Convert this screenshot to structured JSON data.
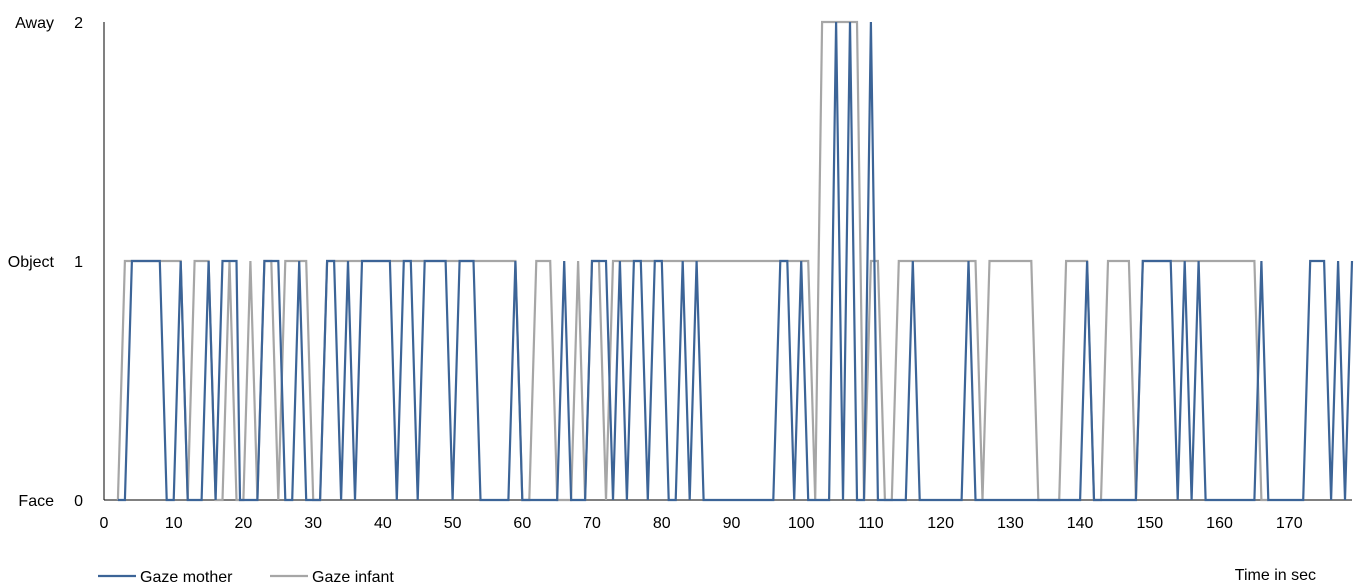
{
  "chart_data": {
    "type": "line",
    "title": "",
    "xlabel": "Time in sec",
    "ylabel": "",
    "xlim": [
      0,
      179
    ],
    "ylim": [
      0,
      2
    ],
    "x_ticks": [
      0,
      10,
      20,
      30,
      40,
      50,
      60,
      70,
      80,
      90,
      100,
      110,
      120,
      130,
      140,
      150,
      160,
      170
    ],
    "y_ticks": [
      0,
      1,
      2
    ],
    "y_category_labels": [
      "Face",
      "Object",
      "Away"
    ],
    "grid": false,
    "legend_position": "bottom-left",
    "series": [
      {
        "name": "Gaze mother",
        "color": "#3C6497",
        "points": [
          [
            2,
            0
          ],
          [
            3,
            0
          ],
          [
            4,
            1
          ],
          [
            8,
            1
          ],
          [
            9,
            0
          ],
          [
            10,
            0
          ],
          [
            11,
            1
          ],
          [
            12,
            0
          ],
          [
            14,
            0
          ],
          [
            15,
            1
          ],
          [
            16,
            0
          ],
          [
            17,
            1
          ],
          [
            18,
            1
          ],
          [
            19,
            1
          ],
          [
            19.5,
            0
          ],
          [
            22,
            0
          ],
          [
            23,
            1
          ],
          [
            25,
            1
          ],
          [
            26,
            0
          ],
          [
            27,
            0
          ],
          [
            28,
            1
          ],
          [
            29,
            0
          ],
          [
            31,
            0
          ],
          [
            32,
            1
          ],
          [
            33,
            1
          ],
          [
            34,
            0
          ],
          [
            35,
            1
          ],
          [
            36,
            0
          ],
          [
            37,
            1
          ],
          [
            41,
            1
          ],
          [
            42,
            0
          ],
          [
            43,
            1
          ],
          [
            44,
            1
          ],
          [
            45,
            0
          ],
          [
            46,
            1
          ],
          [
            49,
            1
          ],
          [
            50,
            0
          ],
          [
            51,
            1
          ],
          [
            53,
            1
          ],
          [
            54,
            0
          ],
          [
            58,
            0
          ],
          [
            59,
            1
          ],
          [
            60,
            0
          ],
          [
            65,
            0
          ],
          [
            66,
            1
          ],
          [
            67,
            0
          ],
          [
            69,
            0
          ],
          [
            70,
            1
          ],
          [
            72,
            1
          ],
          [
            73,
            0
          ],
          [
            74,
            1
          ],
          [
            75,
            0
          ],
          [
            76,
            1
          ],
          [
            77,
            1
          ],
          [
            78,
            0
          ],
          [
            79,
            1
          ],
          [
            80,
            1
          ],
          [
            81,
            0
          ],
          [
            82,
            0
          ],
          [
            83,
            1
          ],
          [
            84,
            0
          ],
          [
            85,
            1
          ],
          [
            86,
            0
          ],
          [
            96,
            0
          ],
          [
            97,
            1
          ],
          [
            98,
            1
          ],
          [
            99,
            0
          ],
          [
            100,
            1
          ],
          [
            101,
            0
          ],
          [
            102,
            0
          ],
          [
            104,
            0
          ],
          [
            105,
            2
          ],
          [
            106,
            0
          ],
          [
            107,
            2
          ],
          [
            108,
            0
          ],
          [
            109,
            0
          ],
          [
            110,
            2
          ],
          [
            111,
            0
          ],
          [
            114,
            0
          ],
          [
            115,
            0
          ],
          [
            116,
            1
          ],
          [
            117,
            0
          ],
          [
            123,
            0
          ],
          [
            124,
            1
          ],
          [
            125,
            0
          ],
          [
            134,
            0
          ],
          [
            140,
            0
          ],
          [
            141,
            1
          ],
          [
            142,
            0
          ],
          [
            148,
            0
          ],
          [
            149,
            1
          ],
          [
            150,
            1
          ],
          [
            151,
            1
          ],
          [
            153,
            1
          ],
          [
            154,
            0
          ],
          [
            155,
            1
          ],
          [
            156,
            0
          ],
          [
            157,
            1
          ],
          [
            158,
            0
          ],
          [
            165,
            0
          ],
          [
            166,
            1
          ],
          [
            167,
            0
          ],
          [
            172,
            0
          ],
          [
            173,
            1
          ],
          [
            175,
            1
          ],
          [
            176,
            0
          ],
          [
            177,
            1
          ],
          [
            178,
            0
          ],
          [
            179,
            1
          ]
        ]
      },
      {
        "name": "Gaze infant",
        "color": "#A6A6A6",
        "points": [
          [
            2,
            0
          ],
          [
            3,
            1
          ],
          [
            11,
            1
          ],
          [
            12,
            0
          ],
          [
            13,
            1
          ],
          [
            15,
            1
          ],
          [
            16,
            0
          ],
          [
            17,
            0
          ],
          [
            18,
            1
          ],
          [
            19,
            0
          ],
          [
            20,
            0
          ],
          [
            21,
            1
          ],
          [
            22,
            0
          ],
          [
            23,
            1
          ],
          [
            24,
            1
          ],
          [
            25,
            0
          ],
          [
            26,
            1
          ],
          [
            29,
            1
          ],
          [
            30,
            0
          ],
          [
            31,
            0
          ],
          [
            32,
            1
          ],
          [
            59,
            1
          ],
          [
            60,
            0
          ],
          [
            61,
            0
          ],
          [
            62,
            1
          ],
          [
            64,
            1
          ],
          [
            65,
            0
          ],
          [
            67,
            0
          ],
          [
            68,
            1
          ],
          [
            69,
            0
          ],
          [
            70,
            1
          ],
          [
            71,
            1
          ],
          [
            72,
            0
          ],
          [
            73,
            1
          ],
          [
            101,
            1
          ],
          [
            102,
            0
          ],
          [
            103,
            2
          ],
          [
            108,
            2
          ],
          [
            109,
            0
          ],
          [
            110,
            1
          ],
          [
            111,
            1
          ],
          [
            112,
            0
          ],
          [
            113,
            0
          ],
          [
            114,
            1
          ],
          [
            125,
            1
          ],
          [
            126,
            0
          ],
          [
            127,
            1
          ],
          [
            133,
            1
          ],
          [
            134,
            0
          ],
          [
            137,
            0
          ],
          [
            138,
            1
          ],
          [
            141,
            1
          ],
          [
            142,
            0
          ],
          [
            143,
            0
          ],
          [
            144,
            1
          ],
          [
            147,
            1
          ],
          [
            148,
            0
          ],
          [
            149,
            1
          ],
          [
            165,
            1
          ],
          [
            166,
            0
          ],
          [
            167,
            0
          ]
        ]
      }
    ]
  }
}
